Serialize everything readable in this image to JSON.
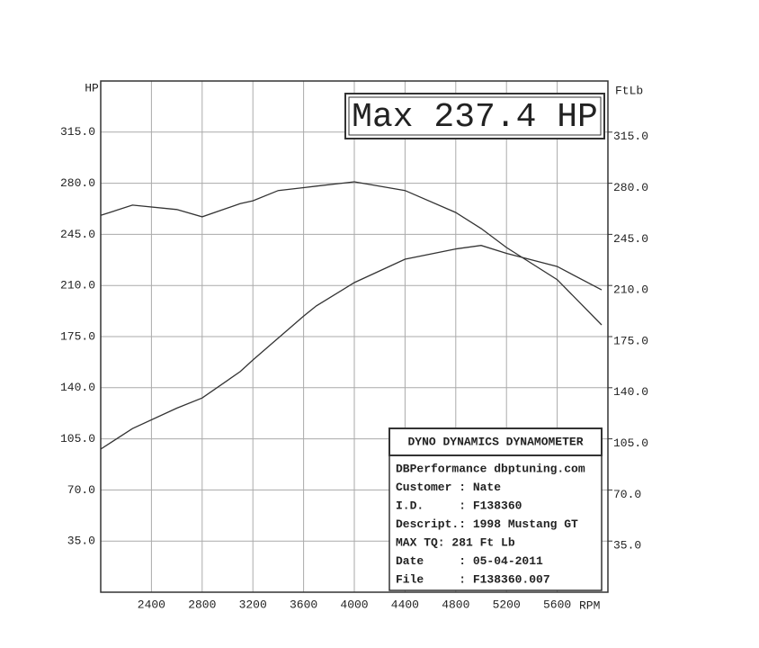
{
  "chart_data": {
    "type": "line",
    "title": "Max 237.4 HP",
    "y_label": "HP",
    "y2_label": "FtLb",
    "x_label": "RPM",
    "x": [
      2000,
      2250,
      2600,
      2800,
      3100,
      3200,
      3400,
      3600,
      3700,
      4000,
      4400,
      4800,
      5000,
      5200,
      5600,
      5950
    ],
    "series": [
      {
        "name": "HP",
        "color": "#333333",
        "values": [
          98,
          112,
          126,
          133,
          151,
          159,
          174,
          189,
          196,
          212,
          228,
          235,
          237.4,
          232,
          223,
          207
        ]
      },
      {
        "name": "FtLb",
        "color": "#333333",
        "axis": "y2",
        "values": [
          258,
          265,
          262,
          257,
          266,
          268,
          275,
          277,
          278,
          281,
          275,
          260,
          249,
          236,
          214,
          183
        ]
      }
    ],
    "xlim": [
      2000,
      6000
    ],
    "xticks": [
      2400,
      2800,
      3200,
      3600,
      4000,
      4400,
      4800,
      5200,
      5600
    ],
    "ylim": [
      0,
      350
    ],
    "yticks": [
      {
        "value": 35,
        "label": "35.0"
      },
      {
        "value": 70,
        "label": "70.0"
      },
      {
        "value": 105,
        "label": "105.0"
      },
      {
        "value": 140,
        "label": "140.0"
      },
      {
        "value": 175,
        "label": "175.0"
      },
      {
        "value": 210,
        "label": "210.0"
      },
      {
        "value": 245,
        "label": "245.0"
      },
      {
        "value": 280,
        "label": "280.0"
      },
      {
        "value": 315,
        "label": "315.0"
      }
    ],
    "y2lim": [
      0,
      350
    ],
    "y2ticks": [
      {
        "value": 35,
        "label": "35.0"
      },
      {
        "value": 70,
        "label": "70.0"
      },
      {
        "value": 105,
        "label": "105.0"
      },
      {
        "value": 140,
        "label": "140.0"
      },
      {
        "value": 175,
        "label": "175.0"
      },
      {
        "value": 210,
        "label": "210.0"
      },
      {
        "value": 245,
        "label": "245.0"
      },
      {
        "value": 280,
        "label": "280.0"
      },
      {
        "value": 315,
        "label": "315.0"
      }
    ],
    "grid": true
  },
  "info_box": {
    "title": "DYNO DYNAMICS DYNAMOMETER",
    "lines": [
      "DBPerformance dbptuning.com",
      "Customer : Nate",
      "I.D.     : F138360",
      "Descript.: 1998 Mustang GT",
      "MAX TQ: 281 Ft Lb",
      "Date     : 05-04-2011",
      "File     : F138360.007"
    ]
  }
}
